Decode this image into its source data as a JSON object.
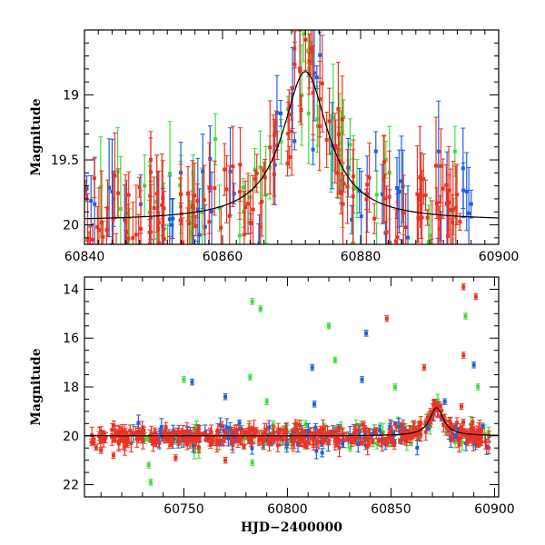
{
  "colors": {
    "green": "#3ddc3d",
    "blue": "#1f5fe0",
    "red": "#ee3322",
    "model": "#000000"
  },
  "chart_data": [
    {
      "type": "scatter",
      "xlim": [
        60840,
        60900
      ],
      "ylim": [
        20.15,
        18.5
      ],
      "y_inverted": true,
      "xticks": [
        60840,
        60860,
        60880,
        60900
      ],
      "xtick_labels": [
        "60840",
        "60860",
        "60880",
        "60900"
      ],
      "yticks": [
        19,
        19.5,
        20
      ],
      "ytick_labels": [
        "19",
        "19.5",
        "20"
      ],
      "xlabel": "",
      "ylabel": "Magnitude",
      "grid": false,
      "model": {
        "baseline": 19.97,
        "peak_time": 60872.0,
        "peak_mag": 18.82,
        "tE": 4.0
      },
      "series": [
        {
          "color": "green",
          "baseline": 19.97,
          "scatter": 0.22,
          "x_range": [
            60840,
            60895
          ],
          "n": 60
        },
        {
          "color": "blue",
          "baseline": 19.97,
          "scatter": 0.22,
          "x_range": [
            60840,
            60897
          ],
          "n": 70
        },
        {
          "color": "red",
          "baseline": 19.97,
          "scatter": 0.18,
          "x_range": [
            60840,
            60895
          ],
          "n": 160
        }
      ]
    },
    {
      "type": "scatter",
      "xlim": [
        60702,
        60902
      ],
      "ylim": [
        22.5,
        13.5
      ],
      "y_inverted": true,
      "xticks": [
        60750,
        60800,
        60850,
        60900
      ],
      "xtick_labels": [
        "60750",
        "60800",
        "60850",
        "60900"
      ],
      "yticks": [
        14,
        16,
        18,
        20,
        22
      ],
      "ytick_labels": [
        "14",
        "16",
        "18",
        "20",
        "22"
      ],
      "xlabel": "HJD−2400000",
      "ylabel": "Magnitude",
      "grid": false,
      "model": {
        "baseline": 20.0,
        "peak_time": 60872.0,
        "peak_mag": 18.85,
        "tE": 4.0
      },
      "outliers": [
        {
          "x": 60783,
          "y": 14.5,
          "color": "green"
        },
        {
          "x": 60787,
          "y": 14.8,
          "color": "green"
        },
        {
          "x": 60820,
          "y": 15.5,
          "color": "green"
        },
        {
          "x": 60886,
          "y": 15.1,
          "color": "green"
        },
        {
          "x": 60885,
          "y": 13.9,
          "color": "red"
        },
        {
          "x": 60891,
          "y": 14.3,
          "color": "red"
        },
        {
          "x": 60848,
          "y": 15.2,
          "color": "red"
        },
        {
          "x": 60838,
          "y": 15.8,
          "color": "blue"
        },
        {
          "x": 60885,
          "y": 16.7,
          "color": "red"
        },
        {
          "x": 60823,
          "y": 16.9,
          "color": "green"
        },
        {
          "x": 60812,
          "y": 17.2,
          "color": "blue"
        },
        {
          "x": 60866,
          "y": 17.2,
          "color": "red"
        },
        {
          "x": 60890,
          "y": 17.1,
          "color": "blue"
        },
        {
          "x": 60750,
          "y": 17.7,
          "color": "green"
        },
        {
          "x": 60754,
          "y": 17.8,
          "color": "blue"
        },
        {
          "x": 60782,
          "y": 17.6,
          "color": "green"
        },
        {
          "x": 60836,
          "y": 17.7,
          "color": "blue"
        },
        {
          "x": 60852,
          "y": 18.0,
          "color": "green"
        },
        {
          "x": 60892,
          "y": 18.0,
          "color": "green"
        },
        {
          "x": 60770,
          "y": 18.4,
          "color": "blue"
        },
        {
          "x": 60790,
          "y": 18.6,
          "color": "green"
        },
        {
          "x": 60813,
          "y": 18.7,
          "color": "blue"
        },
        {
          "x": 60876,
          "y": 18.6,
          "color": "blue"
        },
        {
          "x": 60884,
          "y": 18.8,
          "color": "red"
        },
        {
          "x": 60734,
          "y": 21.9,
          "color": "green"
        },
        {
          "x": 60733,
          "y": 21.2,
          "color": "green"
        },
        {
          "x": 60710,
          "y": 20.6,
          "color": "red"
        },
        {
          "x": 60716,
          "y": 20.8,
          "color": "red"
        },
        {
          "x": 60746,
          "y": 20.9,
          "color": "red"
        },
        {
          "x": 60770,
          "y": 21.0,
          "color": "red"
        },
        {
          "x": 60783,
          "y": 21.1,
          "color": "green"
        }
      ],
      "series": [
        {
          "color": "green",
          "baseline": 20.0,
          "scatter": 0.25,
          "x_range": [
            60725,
            60898
          ],
          "n": 120
        },
        {
          "color": "blue",
          "baseline": 20.0,
          "scatter": 0.25,
          "x_range": [
            60725,
            60898
          ],
          "n": 150
        },
        {
          "color": "red",
          "baseline": 20.05,
          "scatter": 0.2,
          "x_range": [
            60705,
            60898
          ],
          "n": 380
        }
      ]
    }
  ]
}
